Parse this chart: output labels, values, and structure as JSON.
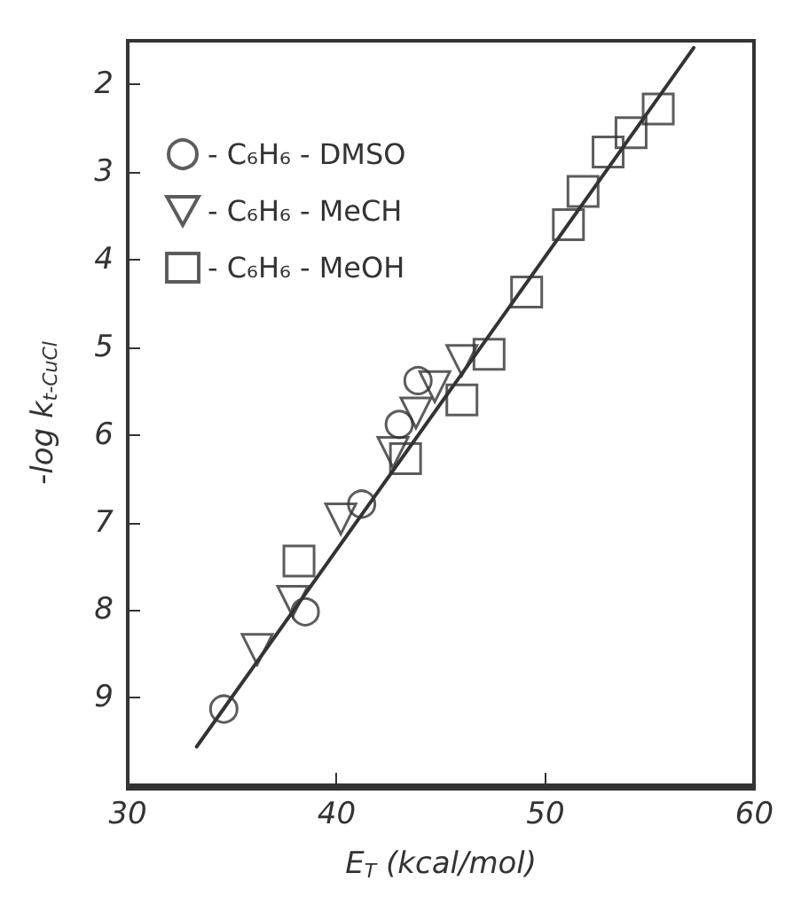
{
  "chart_data": {
    "type": "scatter",
    "xlabel": "E$_{T}$ (kcal/mol)",
    "ylabel": "-log k$_{t-CuCl}$",
    "xlim": [
      30,
      60
    ],
    "xticks": [
      30,
      40,
      50,
      60
    ],
    "ylim": [
      10,
      1.5
    ],
    "yticks": [
      2,
      3,
      4,
      5,
      6,
      7,
      8,
      9
    ],
    "legend": "top left",
    "grid": false,
    "series": [
      {
        "name": "- C₆H₆ - DMSO",
        "color": "#333333",
        "marker": "circle",
        "x": [
          34.6,
          38.5,
          41.2,
          43.0,
          43.9
        ],
        "values": [
          9.13,
          8.02,
          6.79,
          5.88,
          5.38
        ]
      },
      {
        "name": "- C₆H₆ - MeCH",
        "color": "#333333",
        "marker": "triangle",
        "x": [
          36.2,
          37.9,
          40.2,
          42.7,
          43.8,
          44.7,
          46.0
        ],
        "values": [
          8.45,
          7.9,
          6.96,
          6.2,
          5.75,
          5.45,
          5.15
        ]
      },
      {
        "name": "- C₆H₆ - MeOH",
        "color": "#333333",
        "marker": "square",
        "x": [
          38.2,
          43.3,
          46.0,
          47.3,
          49.1,
          51.1,
          51.8,
          53.0,
          54.1,
          55.4
        ],
        "values": [
          7.44,
          6.27,
          5.6,
          5.08,
          4.37,
          3.6,
          3.22,
          2.77,
          2.55,
          2.28
        ]
      },
      {
        "type": "line",
        "color": "#333333",
        "marker": "none",
        "line_style": "solid",
        "x": [
          33.3,
          57.1
        ],
        "values": [
          9.56,
          1.58
        ]
      }
    ]
  }
}
